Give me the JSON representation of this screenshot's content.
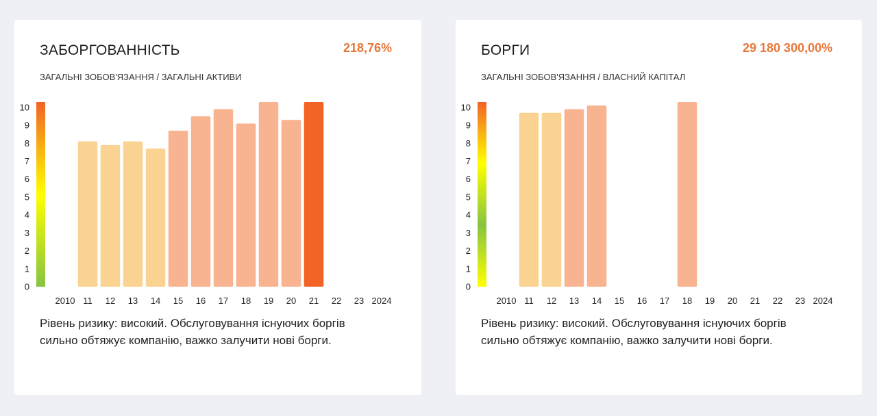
{
  "cards": [
    {
      "title": "ЗАБОРГОВАННІСТЬ",
      "value": "218,76%",
      "subtitle": "ЗАГАЛЬНІ ЗОБОВ'ЯЗАННЯ / ЗАГАЛЬНІ АКТИВИ",
      "description": "Рівень ризику: високий. Обслуговування існуючих боргів сильно обтяжує компанію, важко залучити нові борги."
    },
    {
      "title": "БОРГИ",
      "value": "29 180 300,00%",
      "subtitle": "ЗАГАЛЬНІ ЗОБОВ'ЯЗАННЯ / ВЛАСНИЙ КАПІТАЛ",
      "description": "Рівень ризику: високий. Обслуговування існуючих боргів сильно обтяжує компанію, важко залучити нові борги."
    }
  ],
  "colors": {
    "light": "#fad393",
    "medium": "#f8b390",
    "dark": "#f26326",
    "value": "#e8773a"
  },
  "chart_data": [
    {
      "type": "bar",
      "categories": [
        "2010",
        "11",
        "12",
        "13",
        "14",
        "15",
        "16",
        "17",
        "18",
        "19",
        "20",
        "21",
        "22",
        "23",
        "2024"
      ],
      "values": [
        null,
        8.1,
        7.9,
        8.1,
        7.7,
        8.7,
        9.5,
        9.9,
        9.1,
        10.3,
        9.3,
        10.3,
        null,
        null,
        null
      ],
      "colors": [
        null,
        "light",
        "light",
        "light",
        "light",
        "medium",
        "medium",
        "medium",
        "medium",
        "medium",
        "medium",
        "dark",
        null,
        null,
        null
      ],
      "y_ticks": [
        0,
        1,
        2,
        3,
        4,
        5,
        6,
        7,
        8,
        9,
        10
      ],
      "ylim": [
        0,
        10.3
      ],
      "scale_gradient": [
        "#86c440",
        "#ffff00",
        "#f26326"
      ]
    },
    {
      "type": "bar",
      "categories": [
        "2010",
        "11",
        "12",
        "13",
        "14",
        "15",
        "16",
        "17",
        "18",
        "19",
        "20",
        "21",
        "22",
        "23",
        "2024"
      ],
      "values": [
        null,
        9.7,
        9.7,
        9.9,
        10.1,
        null,
        null,
        null,
        10.3,
        null,
        null,
        null,
        null,
        null,
        null
      ],
      "colors": [
        null,
        "light",
        "light",
        "medium",
        "medium",
        null,
        null,
        null,
        "medium",
        null,
        null,
        null,
        null,
        null,
        null
      ],
      "y_ticks": [
        0,
        1,
        2,
        3,
        4,
        5,
        6,
        7,
        8,
        9,
        10
      ],
      "ylim": [
        0,
        10.3
      ],
      "scale_gradient": [
        "#ffff00",
        "#86c440",
        "#ffff00",
        "#f26326"
      ]
    }
  ]
}
